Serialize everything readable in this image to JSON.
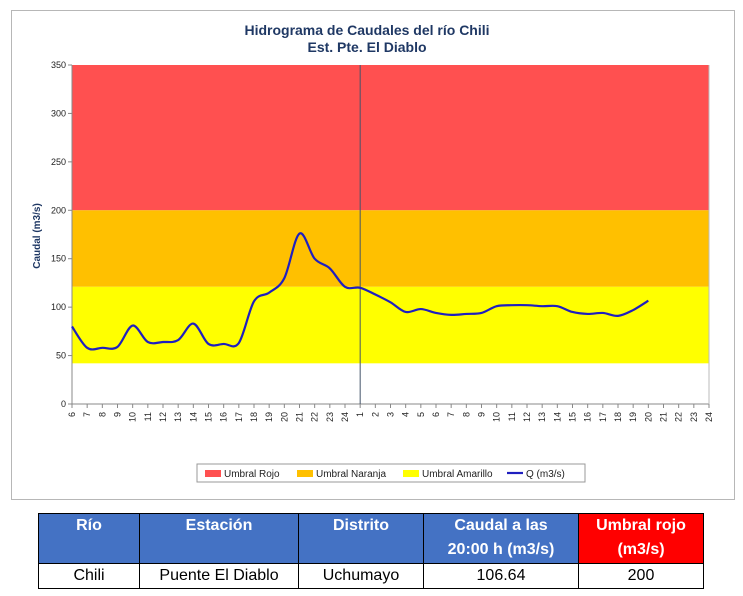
{
  "chart_data": {
    "type": "line",
    "title": "Hidrograma de Caudales del río Chili",
    "subtitle": "Est. Pte. El Diablo",
    "ylabel": "Caudal  (m3/s)",
    "ylim": [
      0,
      350
    ],
    "yticks": [
      "0",
      "50",
      "100",
      "150",
      "200",
      "250",
      "300",
      "350"
    ],
    "xticks": [
      "6",
      "7",
      "8",
      "9",
      "10",
      "11",
      "12",
      "13",
      "14",
      "15",
      "16",
      "17",
      "18",
      "19",
      "20",
      "21",
      "22",
      "23",
      "24",
      "1",
      "2",
      "3",
      "4",
      "5",
      "6",
      "7",
      "8",
      "9",
      "10",
      "11",
      "12",
      "13",
      "14",
      "15",
      "16",
      "17",
      "18",
      "19",
      "20",
      "21",
      "22",
      "23",
      "24"
    ],
    "day_separator_label": "1",
    "bands": [
      {
        "name": "Umbral Rojo",
        "color": "#ff5050",
        "from": 200,
        "to": 350
      },
      {
        "name": "Umbral Naranja",
        "color": "#ffc000",
        "from": 121,
        "to": 200
      },
      {
        "name": "Umbral Amarillo",
        "color": "#ffff00",
        "from": 42,
        "to": 121
      }
    ],
    "series": [
      {
        "name": "Q (m3/s)",
        "color": "#1f1fbf",
        "values": [
          80,
          58,
          58,
          59,
          81,
          64,
          64,
          66,
          83,
          62,
          62,
          63,
          106,
          115,
          130,
          176,
          150,
          140,
          121,
          120,
          113,
          105,
          95,
          98,
          94,
          92,
          93,
          94,
          101,
          102,
          102,
          101,
          101,
          95,
          93,
          94,
          91,
          97,
          106.64
        ]
      }
    ],
    "legend": [
      "Umbral Rojo",
      "Umbral Naranja",
      "Umbral Amarillo",
      "Q (m3/s)"
    ],
    "legend_position": "bottom",
    "grid": false
  },
  "table": {
    "headers": {
      "rio": "Río",
      "estacion": "Estación",
      "distrito": "Distrito",
      "caudal_line1": "Caudal a las",
      "caudal_line2": "20:00 h (m3/s)",
      "umbral_line1": "Umbral rojo",
      "umbral_line2": "(m3/s)"
    },
    "row": {
      "rio": "Chili",
      "estacion": "Puente El Diablo",
      "distrito": "Uchumayo",
      "caudal": "106.64",
      "umbral": "200"
    }
  }
}
